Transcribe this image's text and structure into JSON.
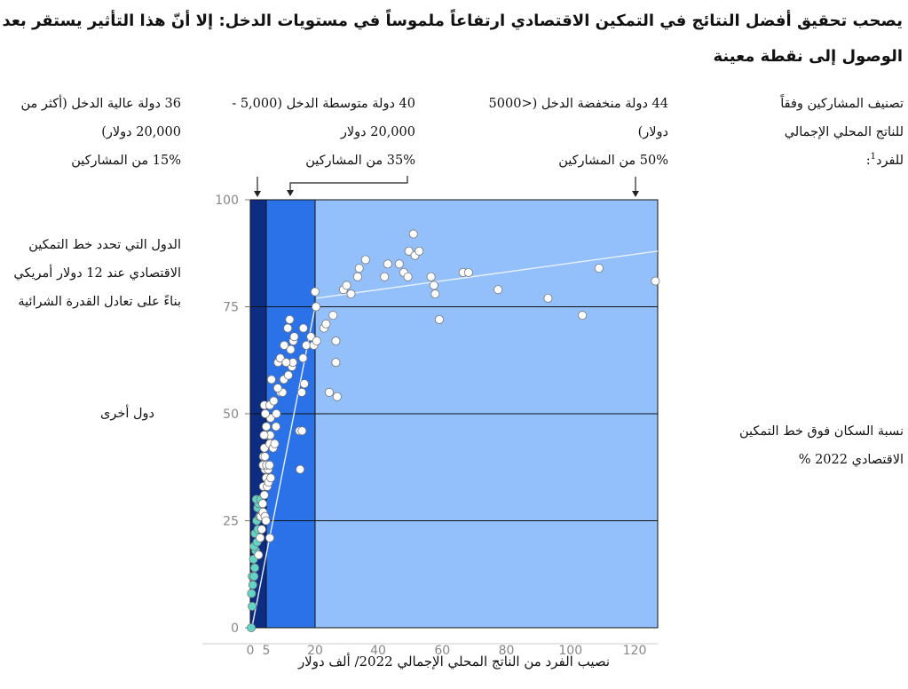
{
  "heading": {
    "line1": "يصحب تحقيق أفضل النتائج في التمكين الاقتصادي ارتفاعاً ملموساً في مستويات الدخل: إلا أنّ هذا التأثير يستقر بعد",
    "line2": "الوصول إلى نقطة معينة"
  },
  "legend_header": {
    "classification": "تصنيف المشاركين وفقاً للناتج المحلي الإجمالي للفرد",
    "footnote": "1",
    "low_income": "44 دولة منخفضة الدخل (<5000 دولار)",
    "low_income_share": "50% من المشاركين",
    "middle_income": "40 دولة متوسطة الدخل (5,000 - 20,000 دولار",
    "middle_income_share": "35% من المشاركين",
    "high_income": "36 دولة عالية الدخل (أكثر من 20,000 دولار)",
    "high_income_share": "15% من المشاركين"
  },
  "side_legend": {
    "poverty_line_countries": "الدول التي تحدد خط التمكين الاقتصادي عند 12 دولار أمريكي بناءً على تعادل القدرة الشرائية",
    "other_countries": "دول أخرى"
  },
  "y_axis_label": "نسبة السكان فوق خط التمكين الاقتصادي 2022 %",
  "x_axis_label": "نصيب الفرد من الناتج المحلي الإجمالي 2022/ ألف دولار",
  "colors": {
    "band_low": "#0d2d82",
    "band_mid": "#2b72e8",
    "band_high": "#93c0fa",
    "teal_points": "#5fd6c6",
    "white_points": "#ffffff",
    "trend_line": "#e8f1ff"
  },
  "chart_data": {
    "type": "scatter",
    "xlabel": "نصيب الفرد من الناتج المحلي الإجمالي 2022/ ألف دولار",
    "ylabel": "نسبة السكان فوق خط التمكين الاقتصادي 2022 %",
    "xlim": [
      0,
      125
    ],
    "ylim": [
      0,
      100
    ],
    "x_ticks": [
      0,
      5,
      20,
      40,
      60,
      80,
      100,
      120
    ],
    "x_tick_labels": [
      "0",
      "5",
      "20",
      "40",
      "60",
      "80",
      "100",
      "120"
    ],
    "y_ticks": [
      0,
      25,
      50,
      75,
      100
    ],
    "grid": "horizontal",
    "income_bands": [
      {
        "name": "low",
        "from": 0,
        "to": 5
      },
      {
        "name": "middle",
        "from": 5,
        "to": 20
      },
      {
        "name": "high",
        "from": 20,
        "to": 125
      }
    ],
    "trend": [
      {
        "x": 0.5,
        "y": 0
      },
      {
        "x": 20,
        "y": 75
      },
      {
        "x": 20.5,
        "y": 77
      },
      {
        "x": 125,
        "y": 88
      }
    ],
    "series": [
      {
        "points": [
          [
            0.3,
            0
          ],
          [
            0.6,
            5
          ],
          [
            0.4,
            8
          ],
          [
            0.8,
            10
          ],
          [
            0.6,
            12
          ],
          [
            1.2,
            12
          ],
          [
            1.4,
            14
          ],
          [
            1.0,
            16
          ],
          [
            1.7,
            18
          ],
          [
            1.2,
            19
          ],
          [
            2.1,
            20
          ],
          [
            1.5,
            22
          ],
          [
            2.4,
            23
          ],
          [
            2.0,
            25
          ],
          [
            2.9,
            26
          ],
          [
            2.3,
            28
          ],
          [
            2.6,
            29
          ],
          [
            1.9,
            30
          ],
          [
            3.2,
            30
          ],
          [
            5.1,
            45
          ]
        ]
      },
      {
        "points": [
          [
            2.6,
            17
          ],
          [
            3.1,
            21
          ],
          [
            3.6,
            23
          ],
          [
            3.3,
            26
          ],
          [
            4.0,
            27
          ],
          [
            4.6,
            26
          ],
          [
            4.9,
            25
          ],
          [
            6.1,
            21
          ],
          [
            3.9,
            29
          ],
          [
            4.4,
            31
          ],
          [
            4.1,
            33
          ],
          [
            5.3,
            33
          ],
          [
            5.0,
            35
          ],
          [
            5.7,
            34
          ],
          [
            6.4,
            35
          ],
          [
            4.6,
            37
          ],
          [
            5.6,
            37
          ],
          [
            4.0,
            38
          ],
          [
            5.1,
            38
          ],
          [
            6.0,
            38
          ],
          [
            4.1,
            40
          ],
          [
            4.6,
            40
          ],
          [
            4.4,
            42
          ],
          [
            6.1,
            43
          ],
          [
            7.1,
            42
          ],
          [
            7.6,
            43
          ],
          [
            6.2,
            45
          ],
          [
            4.3,
            45
          ],
          [
            8.0,
            47
          ],
          [
            5.0,
            47
          ],
          [
            6.3,
            49
          ],
          [
            4.7,
            50
          ],
          [
            4.4,
            52
          ],
          [
            8.1,
            50
          ],
          [
            6.1,
            52
          ],
          [
            7.3,
            53
          ],
          [
            9.4,
            55
          ],
          [
            10.0,
            55
          ],
          [
            8.5,
            56
          ],
          [
            6.6,
            58
          ],
          [
            10.4,
            58
          ],
          [
            11.8,
            59
          ],
          [
            8.6,
            62
          ],
          [
            12.9,
            61
          ],
          [
            13.2,
            62
          ],
          [
            9.3,
            63
          ],
          [
            11.1,
            62
          ],
          [
            12.5,
            65
          ],
          [
            10.5,
            66
          ],
          [
            13.3,
            67
          ],
          [
            11.6,
            70
          ],
          [
            13.6,
            68
          ],
          [
            12.2,
            72
          ],
          [
            16.4,
            70
          ],
          [
            17.3,
            66
          ],
          [
            18.7,
            68
          ],
          [
            15.9,
            55
          ],
          [
            16.7,
            57
          ],
          [
            16.3,
            63
          ],
          [
            15.2,
            46
          ],
          [
            16.0,
            46
          ],
          [
            15.4,
            37
          ],
          [
            19.6,
            66
          ],
          [
            20.5,
            67
          ],
          [
            20.3,
            75
          ],
          [
            20.0,
            78.5
          ],
          [
            22.8,
            70
          ],
          [
            23.5,
            71
          ],
          [
            24.5,
            55
          ],
          [
            25.7,
            73
          ],
          [
            26.6,
            62
          ],
          [
            26.6,
            67
          ],
          [
            27.0,
            54
          ],
          [
            29.0,
            79
          ],
          [
            30.0,
            80
          ],
          [
            31.4,
            78
          ],
          [
            33.5,
            82
          ],
          [
            34.0,
            84
          ],
          [
            36.0,
            86
          ],
          [
            42.0,
            82
          ],
          [
            43.0,
            85
          ],
          [
            46.6,
            85
          ],
          [
            48.0,
            83
          ],
          [
            49.3,
            82
          ],
          [
            49.6,
            88
          ],
          [
            51.0,
            92
          ],
          [
            51.5,
            87
          ],
          [
            52.8,
            88
          ],
          [
            56.5,
            82
          ],
          [
            57.4,
            80
          ],
          [
            57.8,
            78
          ],
          [
            59.1,
            72
          ],
          [
            66.5,
            83
          ],
          [
            68.2,
            83
          ],
          [
            77.4,
            79
          ],
          [
            93.0,
            77
          ],
          [
            103.7,
            73
          ],
          [
            108.9,
            84
          ],
          [
            124.5,
            81
          ]
        ]
      }
    ]
  }
}
